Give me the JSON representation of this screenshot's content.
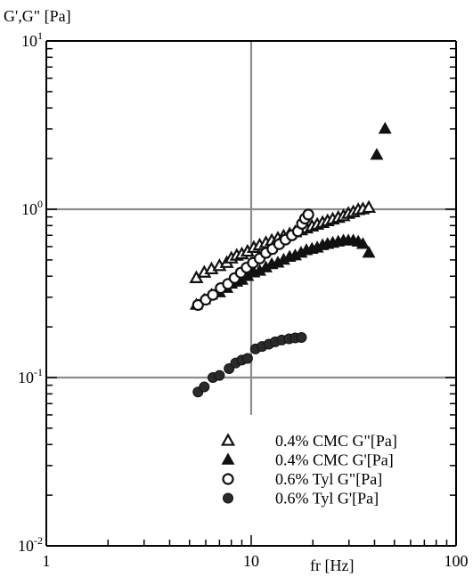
{
  "chart_data": {
    "type": "scatter",
    "title": "",
    "ylabel": "G',G\" [Pa]",
    "xlabel": "fr [Hz]",
    "x_scale": "log",
    "y_scale": "log",
    "xlim": [
      1,
      100
    ],
    "ylim": [
      0.01,
      10
    ],
    "grid": true,
    "x_ticks": [
      {
        "value": 1,
        "label": "1"
      },
      {
        "value": 10,
        "label": "10"
      },
      {
        "value": 100,
        "label": "100"
      }
    ],
    "y_ticks": [
      {
        "value": 0.01,
        "base": "10",
        "exp": "-2"
      },
      {
        "value": 0.1,
        "base": "10",
        "exp": "-1"
      },
      {
        "value": 1,
        "base": "10",
        "exp": "0"
      },
      {
        "value": 10,
        "base": "10",
        "exp": "1"
      }
    ],
    "legend_position": "bottom-right",
    "series": [
      {
        "name": "0.4% CMC G\"[Pa]",
        "marker": "triangle-open",
        "x": [
          5.4,
          5.9,
          6.4,
          7.0,
          7.6,
          8.0,
          8.5,
          9.0,
          9.6,
          10.3,
          11.0,
          11.8,
          12.6,
          13.5,
          14.4,
          15.4,
          16.4,
          17.5,
          18.6,
          19.8,
          21.0,
          22.3,
          23.6,
          25.0,
          26.6,
          28.2,
          29.8,
          31.5,
          33.3,
          35.1,
          37.5
        ],
        "y": [
          0.39,
          0.42,
          0.44,
          0.46,
          0.48,
          0.51,
          0.53,
          0.54,
          0.56,
          0.59,
          0.61,
          0.63,
          0.65,
          0.67,
          0.69,
          0.71,
          0.73,
          0.75,
          0.77,
          0.79,
          0.81,
          0.83,
          0.85,
          0.87,
          0.89,
          0.91,
          0.94,
          0.96,
          0.99,
          1.0,
          1.02
        ]
      },
      {
        "name": "0.4% CMC G'[Pa]",
        "marker": "triangle-filled",
        "x": [
          5.4,
          5.9,
          6.4,
          7.0,
          7.6,
          8.0,
          8.5,
          9.0,
          9.6,
          10.3,
          11.0,
          11.8,
          12.6,
          13.5,
          14.4,
          15.4,
          16.4,
          17.5,
          18.6,
          19.8,
          21.0,
          22.3,
          23.6,
          25.0,
          26.6,
          28.2,
          29.8,
          31.5,
          33.3,
          35.1,
          37.5,
          41.0,
          45.0
        ],
        "y": [
          0.27,
          0.29,
          0.31,
          0.32,
          0.34,
          0.36,
          0.37,
          0.38,
          0.4,
          0.42,
          0.43,
          0.45,
          0.47,
          0.48,
          0.5,
          0.52,
          0.53,
          0.55,
          0.57,
          0.58,
          0.59,
          0.61,
          0.62,
          0.63,
          0.64,
          0.65,
          0.65,
          0.65,
          0.64,
          0.62,
          0.55,
          2.1,
          3.0
        ]
      },
      {
        "name": "0.6% Tyl G\"[Pa]",
        "marker": "circle-open",
        "x": [
          5.5,
          6.0,
          6.5,
          7.1,
          7.7,
          8.3,
          8.9,
          9.5,
          10.2,
          11.0,
          11.8,
          12.7,
          13.7,
          14.7,
          15.8,
          16.9,
          17.7,
          18.3,
          19.0
        ],
        "y": [
          0.27,
          0.29,
          0.31,
          0.34,
          0.36,
          0.39,
          0.42,
          0.45,
          0.48,
          0.51,
          0.55,
          0.58,
          0.62,
          0.66,
          0.7,
          0.74,
          0.82,
          0.88,
          0.93
        ]
      },
      {
        "name": "0.6% Tyl G'[Pa]",
        "marker": "circle-filled",
        "x": [
          5.5,
          5.9,
          6.5,
          7.0,
          7.8,
          8.4,
          9.0,
          9.6,
          10.5,
          11.3,
          12.2,
          13.1,
          14.1,
          15.3,
          16.4,
          17.6
        ],
        "y": [
          0.082,
          0.088,
          0.1,
          0.103,
          0.113,
          0.122,
          0.127,
          0.13,
          0.148,
          0.153,
          0.158,
          0.163,
          0.167,
          0.17,
          0.172,
          0.173
        ]
      }
    ]
  }
}
